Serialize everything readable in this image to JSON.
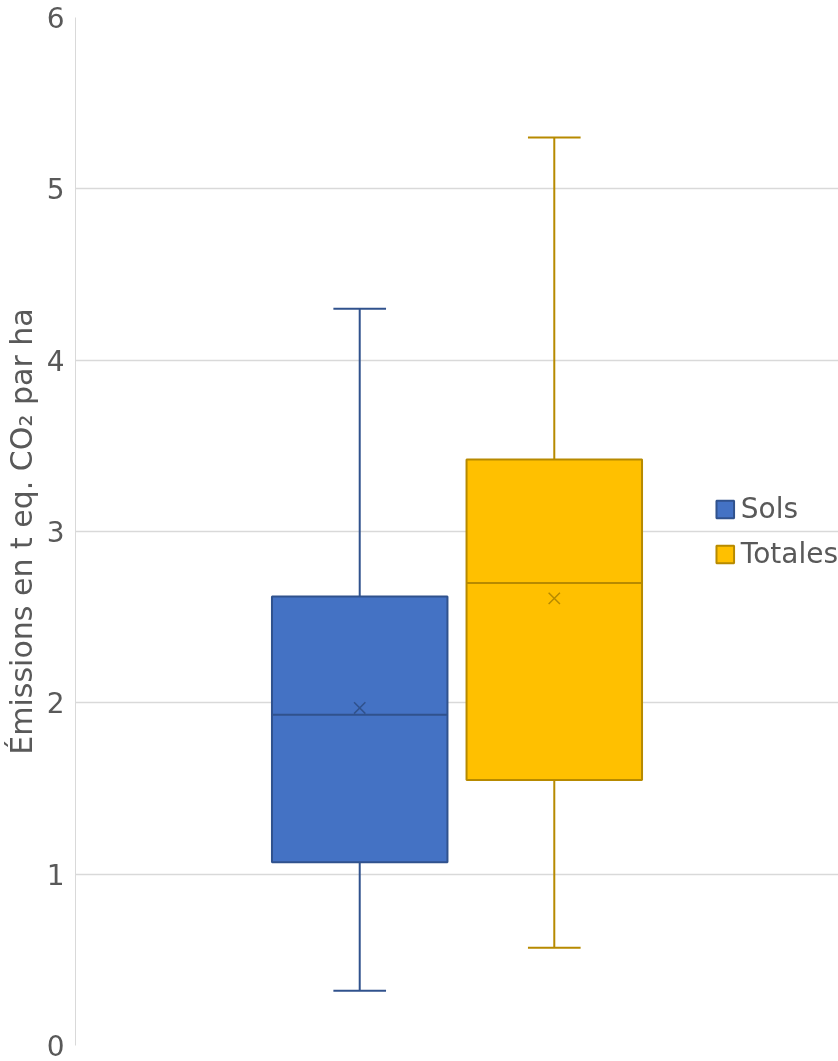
{
  "chart_data": {
    "type": "box",
    "ylabel": "Émissions en t eq. CO₂ par ha",
    "categories": [
      null
    ],
    "series": [
      {
        "name": "Sols",
        "color": "#4472c4",
        "boxes": [
          {
            "low": 0.32,
            "q1": 1.07,
            "median": 1.93,
            "q3": 2.62,
            "high": 4.3,
            "mean": 1.97
          }
        ]
      },
      {
        "name": "Totales",
        "color": "#ffc000",
        "boxes": [
          {
            "low": 0.57,
            "q1": 1.55,
            "median": 2.7,
            "q3": 3.42,
            "high": 5.3,
            "mean": 2.61
          }
        ]
      }
    ],
    "ylim": [
      0,
      6
    ],
    "yticks": [
      0,
      1,
      2,
      3,
      4,
      5,
      6
    ],
    "grid": "y",
    "legend": "right",
    "tick_labels": "y"
  }
}
